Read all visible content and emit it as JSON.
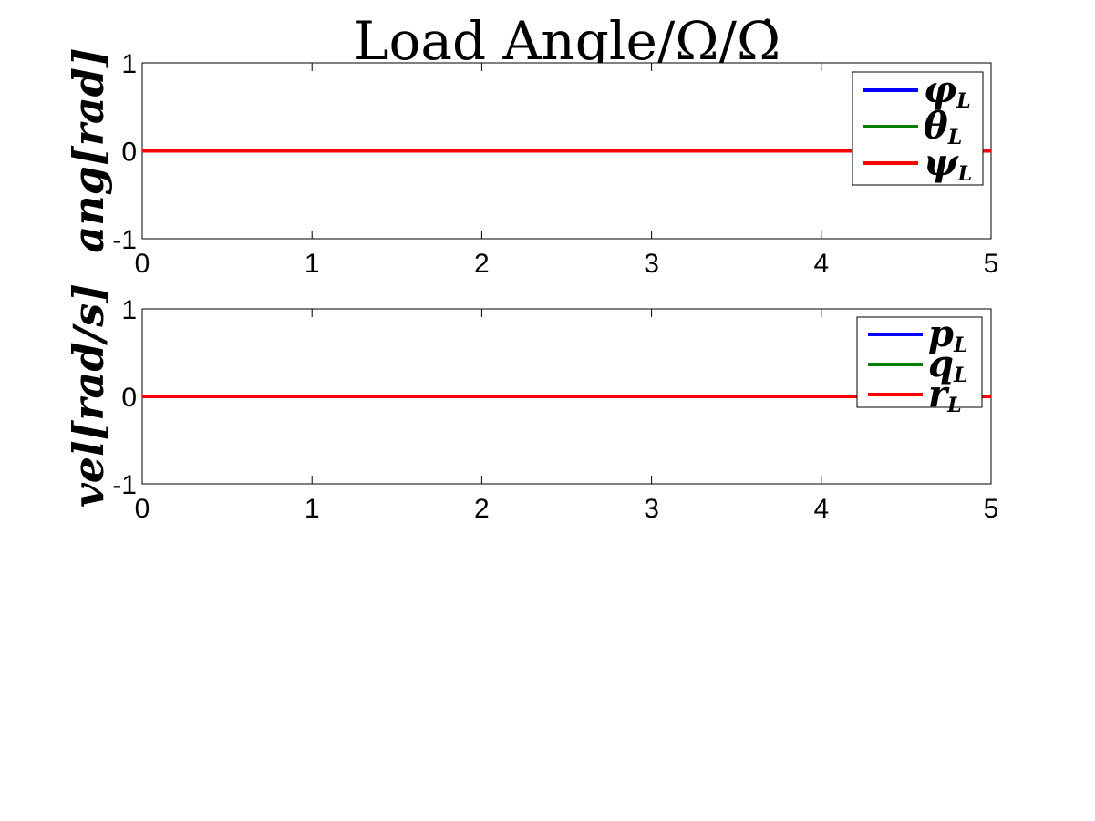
{
  "chart_data": [
    {
      "type": "line",
      "title": "Load Angle/Ω/Ω̇",
      "ylabel": "ang[rad]",
      "x": [
        0,
        1,
        2,
        3,
        4,
        5
      ],
      "xlim": [
        0,
        5
      ],
      "ylim": [
        -1,
        1
      ],
      "xticks": [
        "0",
        "1",
        "2",
        "3",
        "4",
        "5"
      ],
      "yticks": [
        "-1",
        "0",
        "1"
      ],
      "grid": false,
      "legend_position": "top-right",
      "series": [
        {
          "name": "φL",
          "name_main": "φ",
          "name_sub": "L",
          "color": "#0000ff",
          "values": [
            0,
            0,
            0,
            0,
            0,
            0
          ]
        },
        {
          "name": "θL",
          "name_main": "θ",
          "name_sub": "L",
          "color": "#007f00",
          "values": [
            0,
            0,
            0,
            0,
            0,
            0
          ]
        },
        {
          "name": "ψL",
          "name_main": "ψ",
          "name_sub": "L",
          "color": "#ff0000",
          "values": [
            0,
            0,
            0,
            0,
            0,
            0
          ]
        }
      ]
    },
    {
      "type": "line",
      "title": "",
      "ylabel": "vel[rad/s]",
      "x": [
        0,
        1,
        2,
        3,
        4,
        5
      ],
      "xlim": [
        0,
        5
      ],
      "ylim": [
        -1,
        1
      ],
      "xticks": [
        "0",
        "1",
        "2",
        "3",
        "4",
        "5"
      ],
      "yticks": [
        "-1",
        "0",
        "1"
      ],
      "grid": false,
      "legend_position": "top-right",
      "series": [
        {
          "name": "pL",
          "name_main": "p",
          "name_sub": "L",
          "color": "#0000ff",
          "values": [
            0,
            0,
            0,
            0,
            0,
            0
          ]
        },
        {
          "name": "qL",
          "name_main": "q",
          "name_sub": "L",
          "color": "#007f00",
          "values": [
            0,
            0,
            0,
            0,
            0,
            0
          ]
        },
        {
          "name": "rL",
          "name_main": "r",
          "name_sub": "L",
          "color": "#ff0000",
          "values": [
            0,
            0,
            0,
            0,
            0,
            0
          ]
        }
      ]
    }
  ]
}
